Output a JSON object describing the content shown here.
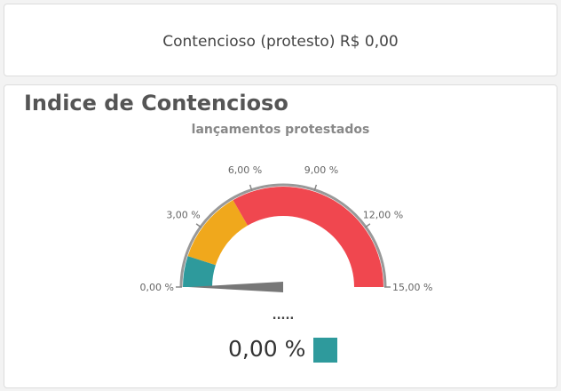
{
  "summary": {
    "text": "Contencioso (protesto) R$ 0,00"
  },
  "gauge": {
    "title": "Indice de Contencioso",
    "subtitle": "lançamentos protestados",
    "min": 0,
    "max": 15,
    "value": 0,
    "ticks": [
      "0,00 %",
      "3,00 %",
      "6,00 %",
      "9,00 %",
      "12,00 %",
      "15,00 %"
    ],
    "bands": [
      {
        "from": 0,
        "to": 1.5,
        "color": "#2e9a9c"
      },
      {
        "from": 1.5,
        "to": 5,
        "color": "#f0a81c"
      },
      {
        "from": 5,
        "to": 15,
        "color": "#f0474f"
      }
    ],
    "dots": ".....",
    "value_label": "0,00 %",
    "value_color": "#2e9a9c"
  }
}
